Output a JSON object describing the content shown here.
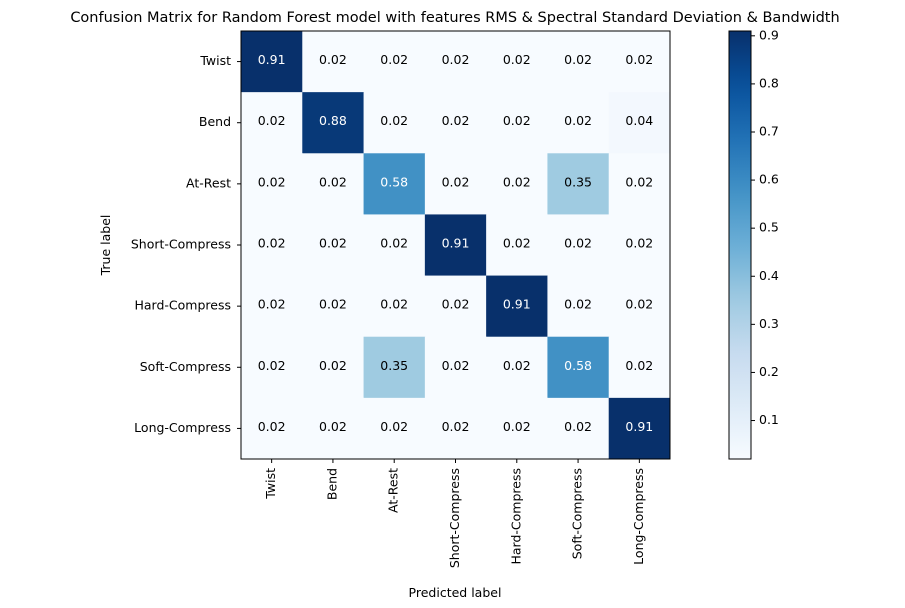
{
  "chart_data": {
    "type": "heatmap",
    "title": "Confusion Matrix for Random Forest model with features RMS & Spectral Standard Deviation & Bandwidth",
    "xlabel": "Predicted label",
    "ylabel": "True label",
    "x_categories": [
      "Twist",
      "Bend",
      "At-Rest",
      "Short-Compress",
      "Hard-Compress",
      "Soft-Compress",
      "Long-Compress"
    ],
    "y_categories": [
      "Twist",
      "Bend",
      "At-Rest",
      "Short-Compress",
      "Hard-Compress",
      "Soft-Compress",
      "Long-Compress"
    ],
    "values": [
      [
        0.91,
        0.02,
        0.02,
        0.02,
        0.02,
        0.02,
        0.02
      ],
      [
        0.02,
        0.88,
        0.02,
        0.02,
        0.02,
        0.02,
        0.04
      ],
      [
        0.02,
        0.02,
        0.58,
        0.02,
        0.02,
        0.35,
        0.02
      ],
      [
        0.02,
        0.02,
        0.02,
        0.91,
        0.02,
        0.02,
        0.02
      ],
      [
        0.02,
        0.02,
        0.02,
        0.02,
        0.91,
        0.02,
        0.02
      ],
      [
        0.02,
        0.02,
        0.35,
        0.02,
        0.02,
        0.58,
        0.02
      ],
      [
        0.02,
        0.02,
        0.02,
        0.02,
        0.02,
        0.02,
        0.91
      ]
    ],
    "colormap": "Blues",
    "vmin": 0.02,
    "vmax": 0.91,
    "colorbar_ticks": [
      0.1,
      0.2,
      0.3,
      0.4,
      0.5,
      0.6,
      0.7,
      0.8,
      0.9
    ],
    "text_color_dark": "#000000",
    "text_color_light": "#ffffff"
  }
}
